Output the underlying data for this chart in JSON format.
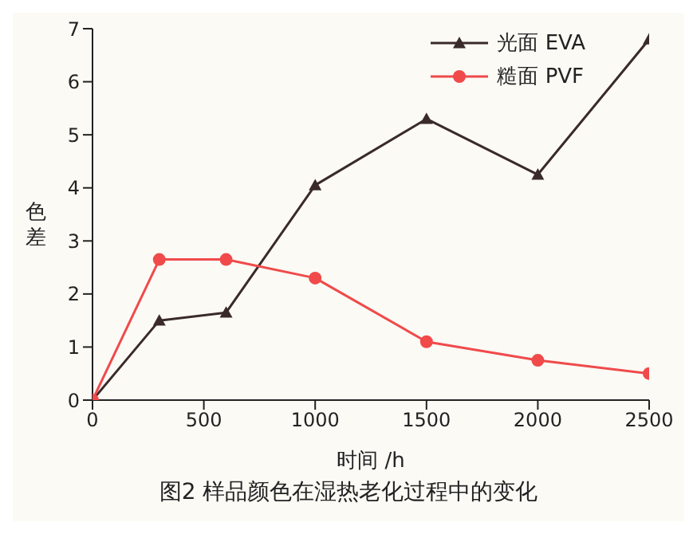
{
  "chart_data": {
    "type": "line",
    "title": "图2  样品颜色在湿热老化过程中的变化",
    "xlabel": "时间 /h",
    "ylabel": "色差",
    "x": [
      0,
      300,
      600,
      1000,
      1500,
      2000,
      2500
    ],
    "series": [
      {
        "name": "光面 EVA",
        "color": "#3a2a2a",
        "marker": "triangle",
        "values": [
          0,
          1.5,
          1.65,
          4.05,
          5.3,
          4.25,
          6.8
        ]
      },
      {
        "name": "糙面 PVF",
        "color": "#f04a4a",
        "marker": "circle",
        "values": [
          0,
          2.65,
          2.65,
          2.3,
          1.1,
          0.75,
          0.5
        ]
      }
    ],
    "xlim": [
      0,
      2500
    ],
    "xticks": [
      0,
      500,
      1000,
      1500,
      2000,
      2500
    ],
    "ylim": [
      0,
      7
    ],
    "yticks": [
      0,
      1,
      2,
      3,
      4,
      5,
      6,
      7
    ],
    "legend": "top right",
    "grid": false
  }
}
